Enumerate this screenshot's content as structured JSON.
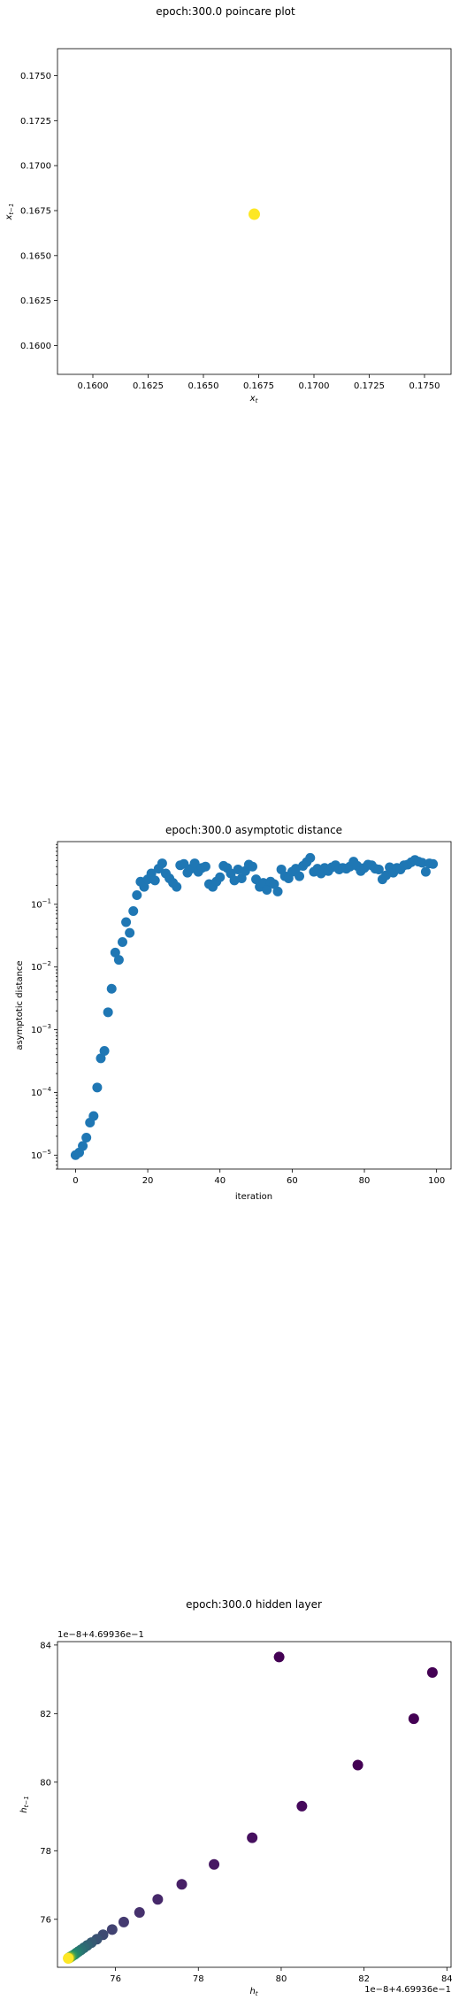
{
  "chart_data": [
    {
      "type": "scatter",
      "title": "epoch:300.0 poincare plot",
      "xlabel": "x_t",
      "ylabel": "x_{t-1}",
      "xlim": [
        0.1584,
        0.1762
      ],
      "ylim": [
        0.1584,
        0.1765
      ],
      "xticks": [
        "0.1600",
        "0.1625",
        "0.1650",
        "0.1675",
        "0.1700",
        "0.1725",
        "0.1750"
      ],
      "yticks": [
        "0.1600",
        "0.1625",
        "0.1650",
        "0.1675",
        "0.1700",
        "0.1725",
        "0.1750"
      ],
      "points": [
        {
          "x": 0.1673,
          "y": 0.1673
        }
      ],
      "point_color": "#fde725",
      "grid": false
    },
    {
      "type": "scatter",
      "title": "epoch:300.0 asymptotic distance",
      "xlabel": "iteration",
      "ylabel": "asymptotic distance",
      "yscale": "log",
      "xlim": [
        -5,
        104
      ],
      "ylim": [
        6e-06,
        1.0
      ],
      "xticks": [
        "0",
        "20",
        "40",
        "60",
        "80",
        "100"
      ],
      "yticks": [
        "10^-5",
        "10^-4",
        "10^-3",
        "10^-2",
        "10^-1"
      ],
      "x": [
        0,
        1,
        2,
        3,
        4,
        5,
        6,
        7,
        8,
        9,
        10,
        11,
        12,
        13,
        14,
        15,
        16,
        17,
        18,
        19,
        20,
        21,
        22,
        23,
        24,
        25,
        26,
        27,
        28,
        29,
        30,
        31,
        32,
        33,
        34,
        35,
        36,
        37,
        38,
        39,
        40,
        41,
        42,
        43,
        44,
        45,
        46,
        47,
        48,
        49,
        50,
        51,
        52,
        53,
        54,
        55,
        56,
        57,
        58,
        59,
        60,
        61,
        62,
        63,
        64,
        65,
        66,
        67,
        68,
        69,
        70,
        71,
        72,
        73,
        74,
        75,
        76,
        77,
        78,
        79,
        80,
        81,
        82,
        83,
        84,
        85,
        86,
        87,
        88,
        89,
        90,
        91,
        92,
        93,
        94,
        95,
        96,
        97,
        98,
        99
      ],
      "y": [
        1e-05,
        1.1e-05,
        1.4e-05,
        1.9e-05,
        3.3e-05,
        4.2e-05,
        0.00012,
        0.00035,
        0.00046,
        0.0019,
        0.0045,
        0.017,
        0.013,
        0.025,
        0.052,
        0.035,
        0.078,
        0.14,
        0.23,
        0.19,
        0.25,
        0.31,
        0.24,
        0.37,
        0.45,
        0.31,
        0.26,
        0.22,
        0.19,
        0.42,
        0.44,
        0.32,
        0.37,
        0.45,
        0.33,
        0.38,
        0.4,
        0.21,
        0.19,
        0.23,
        0.27,
        0.41,
        0.38,
        0.31,
        0.24,
        0.36,
        0.26,
        0.34,
        0.43,
        0.4,
        0.25,
        0.19,
        0.22,
        0.17,
        0.23,
        0.21,
        0.16,
        0.36,
        0.28,
        0.26,
        0.33,
        0.37,
        0.28,
        0.41,
        0.47,
        0.55,
        0.33,
        0.37,
        0.31,
        0.38,
        0.34,
        0.39,
        0.42,
        0.36,
        0.38,
        0.37,
        0.4,
        0.48,
        0.41,
        0.34,
        0.38,
        0.43,
        0.42,
        0.37,
        0.36,
        0.25,
        0.29,
        0.39,
        0.32,
        0.38,
        0.36,
        0.42,
        0.43,
        0.47,
        0.51,
        0.48,
        0.46,
        0.33,
        0.45,
        0.44
      ],
      "point_color": "#1f77b4",
      "grid": false
    },
    {
      "type": "scatter",
      "title": "epoch:300.0 hidden layer",
      "xlabel": "h_t",
      "ylabel": "h_{t-1}",
      "x_offset_label": "1e−8+4.69936e−1",
      "y_offset_label": "1e−8+4.69936e−1",
      "xlim": [
        74.6,
        84.1
      ],
      "ylim": [
        74.6,
        84.1
      ],
      "xticks": [
        "76",
        "78",
        "80",
        "82",
        "84"
      ],
      "yticks": [
        "76",
        "78",
        "80",
        "82",
        "84"
      ],
      "points": [
        {
          "x": 79.95,
          "y": 83.65,
          "c": "#440154"
        },
        {
          "x": 83.65,
          "y": 83.2,
          "c": "#440154"
        },
        {
          "x": 83.2,
          "y": 81.85,
          "c": "#440154"
        },
        {
          "x": 81.85,
          "y": 80.5,
          "c": "#440154"
        },
        {
          "x": 80.5,
          "y": 79.3,
          "c": "#45085b"
        },
        {
          "x": 79.3,
          "y": 78.38,
          "c": "#46105f"
        },
        {
          "x": 78.38,
          "y": 77.6,
          "c": "#471863"
        },
        {
          "x": 77.6,
          "y": 77.02,
          "c": "#472066"
        },
        {
          "x": 77.02,
          "y": 76.58,
          "c": "#46286a"
        },
        {
          "x": 76.58,
          "y": 76.2,
          "c": "#46316d"
        },
        {
          "x": 76.2,
          "y": 75.92,
          "c": "#443a70"
        },
        {
          "x": 75.92,
          "y": 75.7,
          "c": "#414271"
        },
        {
          "x": 75.7,
          "y": 75.55,
          "c": "#3d4a72"
        },
        {
          "x": 75.55,
          "y": 75.42,
          "c": "#3a5273"
        },
        {
          "x": 75.42,
          "y": 75.32,
          "c": "#365a73"
        },
        {
          "x": 75.32,
          "y": 75.24,
          "c": "#326173"
        },
        {
          "x": 75.24,
          "y": 75.17,
          "c": "#2e6873"
        },
        {
          "x": 75.17,
          "y": 75.11,
          "c": "#2b6f72"
        },
        {
          "x": 75.11,
          "y": 75.06,
          "c": "#287671"
        },
        {
          "x": 75.06,
          "y": 75.02,
          "c": "#257e6f"
        },
        {
          "x": 75.02,
          "y": 74.98,
          "c": "#22856c"
        },
        {
          "x": 74.98,
          "y": 74.95,
          "c": "#258d68"
        },
        {
          "x": 74.95,
          "y": 74.93,
          "c": "#2e9562"
        },
        {
          "x": 74.93,
          "y": 74.91,
          "c": "#3c9d5a"
        },
        {
          "x": 74.91,
          "y": 74.9,
          "c": "#4ea551"
        },
        {
          "x": 74.9,
          "y": 74.89,
          "c": "#63ad46"
        },
        {
          "x": 74.89,
          "y": 74.88,
          "c": "#7cb53a"
        },
        {
          "x": 74.88,
          "y": 74.87,
          "c": "#96bd2d"
        },
        {
          "x": 74.87,
          "y": 74.87,
          "c": "#b4c322"
        },
        {
          "x": 74.86,
          "y": 74.86,
          "c": "#d2c81c"
        },
        {
          "x": 74.86,
          "y": 74.86,
          "c": "#fde725"
        }
      ],
      "grid": false
    }
  ]
}
